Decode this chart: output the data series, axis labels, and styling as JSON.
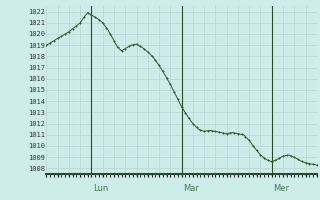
{
  "background_color": "#cdecea",
  "grid_color_major": "#b8d4d0",
  "grid_color_minor": "#cde8e5",
  "line_color": "#2d5a27",
  "ylim": [
    1007.5,
    1022.5
  ],
  "yticks": [
    1008,
    1009,
    1010,
    1011,
    1012,
    1013,
    1014,
    1015,
    1016,
    1017,
    1018,
    1019,
    1020,
    1021,
    1022
  ],
  "day_labels": [
    "Lun",
    "Mar",
    "Mer"
  ],
  "day_label_color": "#4a7a4a",
  "day_line_color": "#2a4a2a",
  "xlim": [
    0,
    144
  ],
  "pressure_key_t": [
    0,
    3,
    6,
    9,
    12,
    15,
    18,
    20,
    22,
    24,
    27,
    30,
    33,
    36,
    38,
    40,
    42,
    45,
    48,
    51,
    54,
    57,
    60,
    63,
    66,
    69,
    72,
    75,
    78,
    81,
    84,
    87,
    90,
    93,
    96,
    99,
    102,
    105,
    108,
    111,
    114,
    117,
    120,
    123,
    126,
    129,
    132,
    135,
    138,
    141,
    144
  ],
  "pressure_key_v": [
    1019.0,
    1019.3,
    1019.6,
    1019.9,
    1020.2,
    1020.6,
    1021.0,
    1021.5,
    1021.9,
    1021.7,
    1021.4,
    1021.0,
    1020.3,
    1019.4,
    1018.8,
    1018.5,
    1018.7,
    1019.0,
    1019.1,
    1018.8,
    1018.4,
    1017.9,
    1017.2,
    1016.4,
    1015.5,
    1014.5,
    1013.5,
    1012.7,
    1012.0,
    1011.5,
    1011.3,
    1011.4,
    1011.3,
    1011.2,
    1011.1,
    1011.2,
    1011.1,
    1011.0,
    1010.5,
    1009.8,
    1009.2,
    1008.8,
    1008.6,
    1008.8,
    1009.1,
    1009.2,
    1009.0,
    1008.7,
    1008.5,
    1008.4,
    1008.3
  ]
}
